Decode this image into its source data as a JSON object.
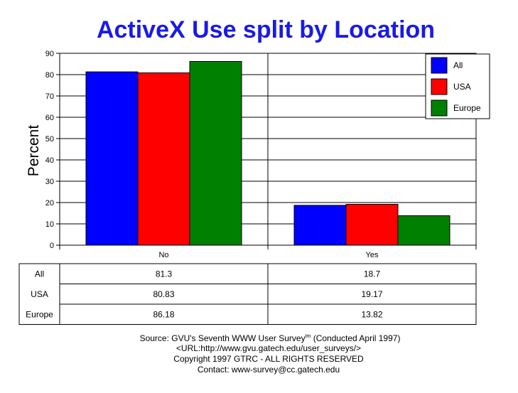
{
  "chart_data": {
    "type": "bar",
    "title": "ActiveX Use split by Location",
    "ylabel": "Percent",
    "xlabel": "",
    "categories": [
      "No",
      "Yes"
    ],
    "ylim": [
      0,
      90
    ],
    "yticks": [
      0,
      10,
      20,
      30,
      40,
      50,
      60,
      70,
      80,
      90
    ],
    "grid": true,
    "legend_position": "top-right",
    "series": [
      {
        "name": "All",
        "color": "#0000ff",
        "values": [
          81.3,
          18.7
        ],
        "labels": [
          "81.3",
          "18.7"
        ]
      },
      {
        "name": "USA",
        "color": "#ff0000",
        "values": [
          80.83,
          19.17
        ],
        "labels": [
          "80.83",
          "19.17"
        ]
      },
      {
        "name": "Europe",
        "color": "#008000",
        "values": [
          86.18,
          13.82
        ],
        "labels": [
          "86.18",
          "13.82"
        ]
      }
    ]
  },
  "footer": {
    "source_prefix": "Source: GVU's Seventh WWW User Survey",
    "source_sup": "tm",
    "source_suffix": " (Conducted April 1997)",
    "url": "<URL:http://www.gvu.gatech.edu/user_surveys/>",
    "copyright": "Copyright 1997 GTRC - ALL RIGHTS RESERVED",
    "contact": "Contact: www-survey@cc.gatech.edu"
  }
}
